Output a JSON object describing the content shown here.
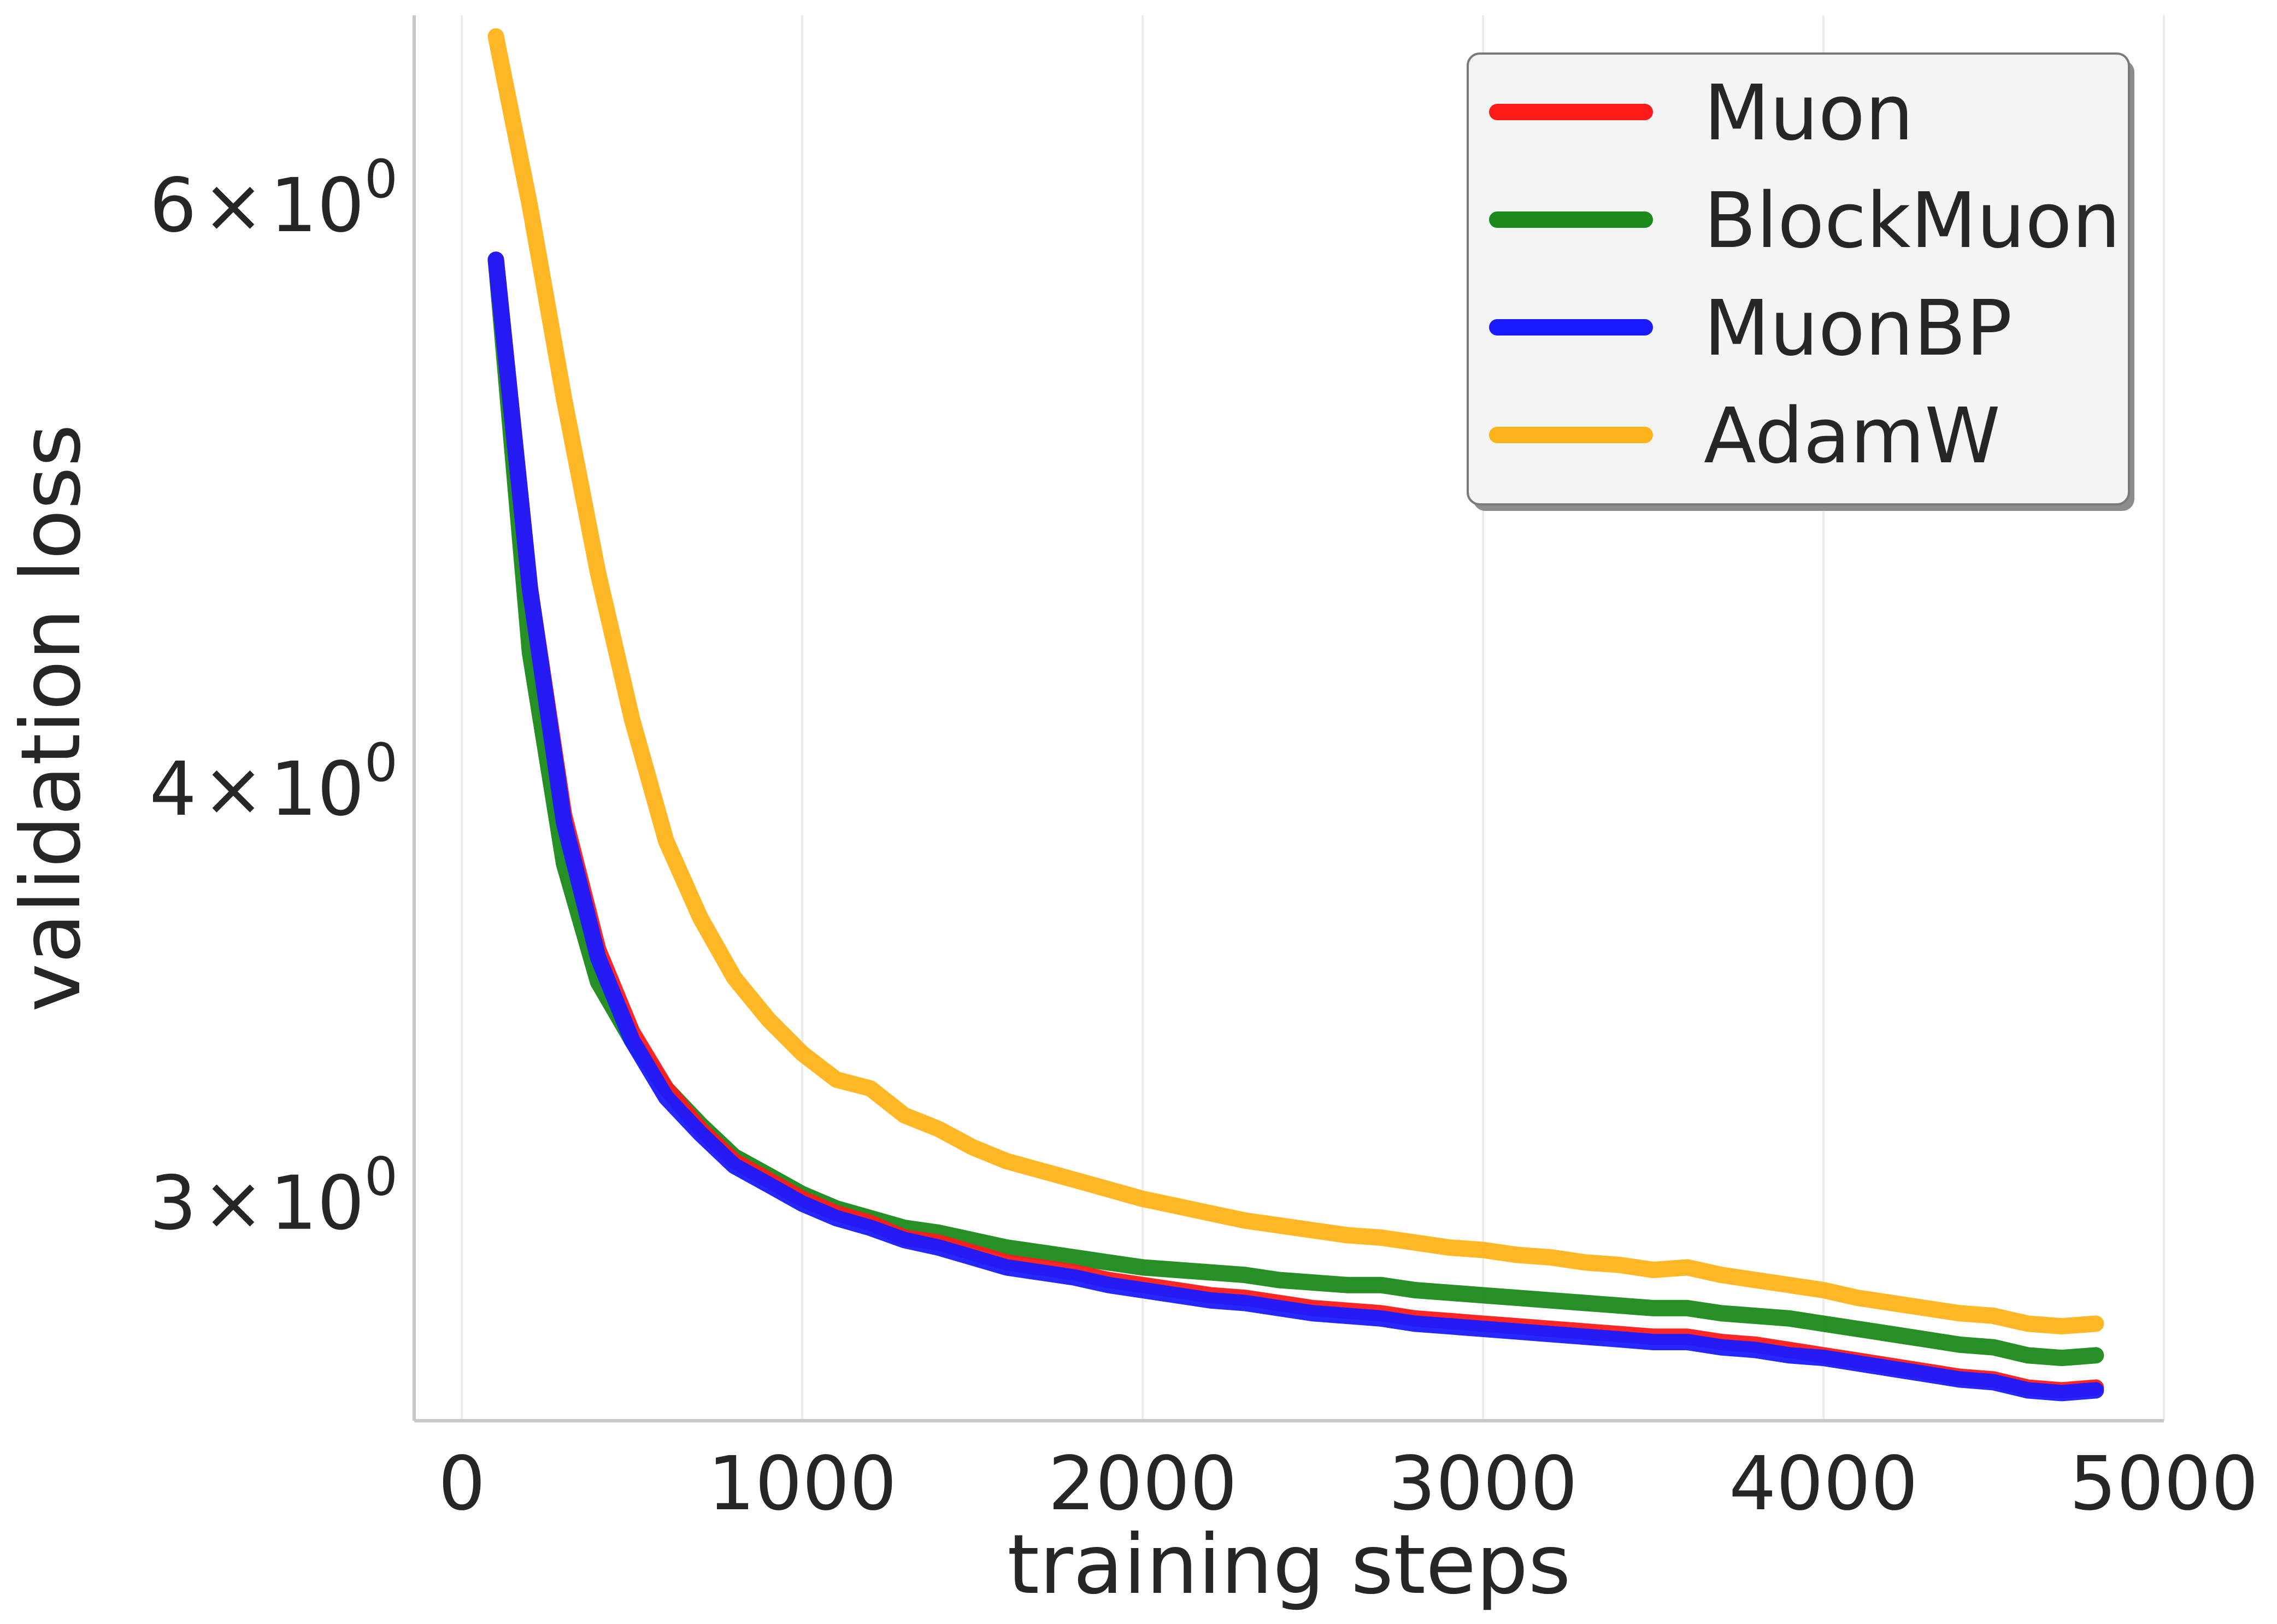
{
  "chart_data": {
    "type": "line",
    "title": "",
    "xlabel": "training steps",
    "ylabel": "validation loss",
    "xlim": [
      -140,
      5000
    ],
    "ylim": [
      2.58,
      6.85
    ],
    "yscale": "log",
    "grid": "vertical",
    "legend_position": "top-right",
    "xticks": [
      {
        "value": 0,
        "label": "0"
      },
      {
        "value": 1000,
        "label": "1000"
      },
      {
        "value": 2000,
        "label": "2000"
      },
      {
        "value": 3000,
        "label": "3000"
      },
      {
        "value": 4000,
        "label": "4000"
      },
      {
        "value": 5000,
        "label": "5000"
      }
    ],
    "yticks": [
      {
        "value": 6,
        "base": "6",
        "times": "×",
        "exp_base": "10",
        "exp": "0"
      },
      {
        "value": 4,
        "base": "4",
        "times": "×",
        "exp_base": "10",
        "exp": "0"
      },
      {
        "value": 3,
        "base": "3",
        "times": "×",
        "exp_base": "10",
        "exp": "0"
      }
    ],
    "x": [
      100,
      200,
      300,
      400,
      500,
      600,
      700,
      800,
      900,
      1000,
      1100,
      1200,
      1300,
      1400,
      1500,
      1600,
      1700,
      1800,
      1900,
      2000,
      2100,
      2200,
      2300,
      2400,
      2500,
      2600,
      2700,
      2800,
      2900,
      3000,
      3100,
      3200,
      3300,
      3400,
      3500,
      3600,
      3700,
      3800,
      3900,
      4000,
      4100,
      4200,
      4300,
      4400,
      4500,
      4600,
      4700,
      4800
    ],
    "series": [
      {
        "name": "Muon",
        "color": "#ff1a1a",
        "values": [
          5.78,
          4.6,
          3.93,
          3.58,
          3.38,
          3.25,
          3.16,
          3.09,
          3.05,
          3.01,
          2.98,
          2.96,
          2.93,
          2.92,
          2.9,
          2.88,
          2.87,
          2.86,
          2.845,
          2.835,
          2.825,
          2.815,
          2.81,
          2.8,
          2.79,
          2.785,
          2.78,
          2.77,
          2.765,
          2.76,
          2.755,
          2.75,
          2.745,
          2.74,
          2.735,
          2.735,
          2.725,
          2.72,
          2.71,
          2.7,
          2.69,
          2.68,
          2.67,
          2.66,
          2.655,
          2.64,
          2.635,
          2.64
        ]
      },
      {
        "name": "BlockMuon",
        "color": "#1a8a1a",
        "values": [
          5.78,
          4.4,
          3.8,
          3.5,
          3.36,
          3.25,
          3.17,
          3.1,
          3.06,
          3.02,
          2.99,
          2.97,
          2.95,
          2.94,
          2.925,
          2.91,
          2.9,
          2.89,
          2.88,
          2.87,
          2.865,
          2.86,
          2.855,
          2.845,
          2.84,
          2.835,
          2.835,
          2.825,
          2.82,
          2.815,
          2.81,
          2.805,
          2.8,
          2.795,
          2.79,
          2.79,
          2.78,
          2.775,
          2.77,
          2.76,
          2.75,
          2.74,
          2.73,
          2.72,
          2.715,
          2.7,
          2.695,
          2.7
        ]
      },
      {
        "name": "MuonBP",
        "color": "#1a1aff",
        "values": [
          5.78,
          4.6,
          3.91,
          3.56,
          3.36,
          3.23,
          3.15,
          3.08,
          3.04,
          3.0,
          2.97,
          2.95,
          2.925,
          2.91,
          2.89,
          2.87,
          2.86,
          2.85,
          2.835,
          2.825,
          2.815,
          2.805,
          2.8,
          2.79,
          2.78,
          2.775,
          2.77,
          2.76,
          2.755,
          2.75,
          2.745,
          2.74,
          2.735,
          2.73,
          2.725,
          2.725,
          2.715,
          2.71,
          2.7,
          2.695,
          2.685,
          2.675,
          2.665,
          2.655,
          2.65,
          2.635,
          2.63,
          2.635
        ]
      },
      {
        "name": "AdamW",
        "color": "#ffb31a",
        "values": [
          6.75,
          6.0,
          5.25,
          4.65,
          4.2,
          3.86,
          3.66,
          3.51,
          3.41,
          3.33,
          3.27,
          3.25,
          3.19,
          3.16,
          3.12,
          3.09,
          3.07,
          3.05,
          3.03,
          3.01,
          2.995,
          2.98,
          2.965,
          2.955,
          2.945,
          2.935,
          2.93,
          2.92,
          2.91,
          2.905,
          2.895,
          2.89,
          2.88,
          2.875,
          2.865,
          2.87,
          2.855,
          2.845,
          2.835,
          2.825,
          2.81,
          2.8,
          2.79,
          2.78,
          2.775,
          2.76,
          2.755,
          2.76
        ]
      }
    ]
  }
}
